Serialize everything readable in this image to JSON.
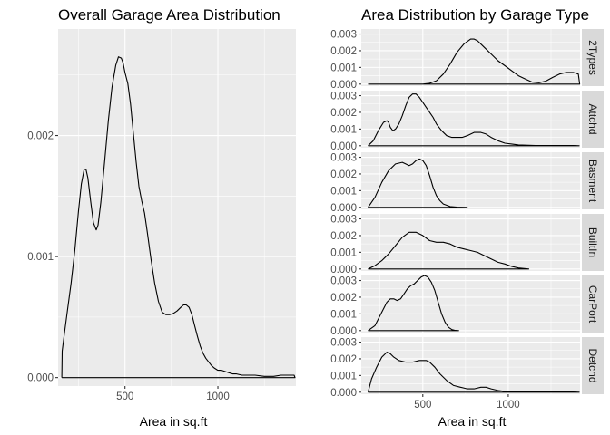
{
  "chart_data": [
    {
      "type": "area",
      "title": "Overall Garage Area Distribution",
      "xlabel": "Area in sq.ft",
      "ylabel": "",
      "xlim": [
        140,
        1420
      ],
      "ylim": [
        -7e-05,
        0.00288
      ],
      "xticks": [
        500,
        1000
      ],
      "xtick_labels": [
        "500",
        "1000"
      ],
      "yticks": [
        0,
        0.001,
        0.002
      ],
      "ytick_labels": [
        "0.000",
        "0.001",
        "0.002"
      ],
      "grid": true,
      "series": [
        {
          "x": [
            160,
            162,
            175,
            190,
            210,
            230,
            250,
            265,
            280,
            290,
            300,
            315,
            330,
            345,
            355,
            370,
            390,
            410,
            430,
            450,
            465,
            480,
            490,
            500,
            515,
            530,
            545,
            560,
            575,
            590,
            605,
            620,
            640,
            660,
            680,
            700,
            720,
            740,
            760,
            780,
            800,
            815,
            830,
            845,
            860,
            875,
            890,
            905,
            920,
            935,
            950,
            965,
            980,
            1000,
            1020,
            1040,
            1060,
            1080,
            1100,
            1130,
            1160,
            1200,
            1250,
            1300,
            1340,
            1380,
            1410,
            1415
          ],
          "y": [
            0.0,
            0.00022,
            0.00038,
            0.00055,
            0.00078,
            0.00105,
            0.00138,
            0.0016,
            0.00172,
            0.00172,
            0.00165,
            0.00146,
            0.00128,
            0.00122,
            0.00126,
            0.00145,
            0.00178,
            0.00212,
            0.0024,
            0.00258,
            0.00265,
            0.00264,
            0.0026,
            0.00252,
            0.00243,
            0.00226,
            0.00202,
            0.00178,
            0.00158,
            0.00146,
            0.00136,
            0.0012,
            0.00098,
            0.00078,
            0.00063,
            0.00054,
            0.00052,
            0.00052,
            0.00053,
            0.00055,
            0.00058,
            0.0006,
            0.0006,
            0.00058,
            0.00052,
            0.00043,
            0.00034,
            0.00026,
            0.0002,
            0.00016,
            0.00013,
            0.0001,
            8e-05,
            6e-05,
            6e-05,
            5e-05,
            4e-05,
            3e-05,
            3e-05,
            2e-05,
            2e-05,
            2e-05,
            1e-05,
            1e-05,
            2e-05,
            2e-05,
            2e-05,
            0.0
          ]
        }
      ]
    },
    {
      "type": "area",
      "title": "Area Distribution by Garage Type",
      "xlabel": "Area in sq.ft",
      "ylabel": "",
      "xlim": [
        140,
        1420
      ],
      "ylim": [
        -0.00012,
        0.0033
      ],
      "xticks": [
        500,
        1000
      ],
      "xtick_labels": [
        "500",
        "1000"
      ],
      "yticks": [
        0,
        0.001,
        0.002,
        0.003
      ],
      "ytick_labels": [
        "0.000",
        "0.001",
        "0.002",
        "0.003"
      ],
      "grid": true,
      "facets": [
        {
          "label": "2Types",
          "x": [
            180,
            500,
            540,
            580,
            620,
            660,
            700,
            740,
            780,
            800,
            820,
            860,
            900,
            940,
            980,
            1020,
            1060,
            1100,
            1140,
            1180,
            1220,
            1260,
            1300,
            1340,
            1380,
            1410,
            1418
          ],
          "y": [
            0.0,
            0.0,
            5e-05,
            0.0002,
            0.0006,
            0.0012,
            0.0019,
            0.0024,
            0.0027,
            0.0027,
            0.0026,
            0.0022,
            0.0018,
            0.0014,
            0.0011,
            0.0008,
            0.0005,
            0.0003,
            0.00012,
            8e-05,
            0.00018,
            0.0004,
            0.0006,
            0.0007,
            0.0007,
            0.0006,
            0.0
          ]
        },
        {
          "label": "Attchd",
          "x": [
            180,
            210,
            240,
            270,
            290,
            300,
            310,
            325,
            340,
            360,
            380,
            400,
            420,
            440,
            460,
            480,
            500,
            520,
            540,
            560,
            580,
            610,
            640,
            670,
            700,
            730,
            760,
            800,
            840,
            870,
            900,
            940,
            980,
            1020,
            1060,
            1100,
            1160,
            1220,
            1300,
            1380,
            1415
          ],
          "y": [
            0.0,
            0.0003,
            0.0009,
            0.0014,
            0.0015,
            0.0014,
            0.0011,
            0.0009,
            0.001,
            0.0013,
            0.0018,
            0.0024,
            0.0029,
            0.0031,
            0.0031,
            0.0029,
            0.0026,
            0.0023,
            0.002,
            0.0017,
            0.0013,
            0.0009,
            0.0006,
            0.0005,
            0.0005,
            0.0005,
            0.0006,
            0.0008,
            0.0008,
            0.0007,
            0.0005,
            0.0003,
            0.00015,
            0.0001,
            5e-05,
            3e-05,
            1e-05,
            1e-05,
            1e-05,
            1e-05,
            0.0
          ]
        },
        {
          "label": "Basment",
          "x": [
            180,
            220,
            260,
            300,
            340,
            380,
            400,
            420,
            440,
            460,
            480,
            500,
            520,
            540,
            560,
            580,
            600,
            620,
            660,
            700,
            760
          ],
          "y": [
            0.0,
            0.0006,
            0.0015,
            0.0022,
            0.0026,
            0.0027,
            0.0026,
            0.0025,
            0.0026,
            0.0028,
            0.0029,
            0.0028,
            0.0025,
            0.0019,
            0.0012,
            0.0007,
            0.0004,
            0.0002,
            5e-05,
            1e-05,
            0.0
          ]
        },
        {
          "label": "BuiltIn",
          "x": [
            180,
            220,
            260,
            300,
            340,
            380,
            420,
            460,
            500,
            540,
            580,
            620,
            660,
            700,
            740,
            780,
            820,
            860,
            900,
            940,
            980,
            1020,
            1060,
            1100,
            1120
          ],
          "y": [
            0.0,
            0.0002,
            0.0005,
            0.0009,
            0.0014,
            0.0019,
            0.0022,
            0.0022,
            0.002,
            0.0017,
            0.0016,
            0.0016,
            0.0015,
            0.0013,
            0.0012,
            0.0011,
            0.001,
            0.0008,
            0.0006,
            0.0004,
            0.0003,
            0.00015,
            6e-05,
            2e-05,
            0.0
          ]
        },
        {
          "label": "CarPort",
          "x": [
            180,
            220,
            260,
            290,
            310,
            330,
            350,
            370,
            390,
            410,
            430,
            450,
            470,
            490,
            510,
            530,
            550,
            570,
            590,
            610,
            630,
            650,
            670,
            690,
            710
          ],
          "y": [
            0.0,
            0.0003,
            0.0011,
            0.0017,
            0.0019,
            0.0019,
            0.0018,
            0.0019,
            0.0022,
            0.0025,
            0.0027,
            0.0028,
            0.003,
            0.0032,
            0.0033,
            0.0032,
            0.0029,
            0.0024,
            0.0017,
            0.001,
            0.0005,
            0.0002,
            6e-05,
            1e-05,
            0.0
          ]
        },
        {
          "label": "Detchd",
          "x": [
            180,
            200,
            230,
            260,
            290,
            310,
            330,
            360,
            400,
            440,
            480,
            520,
            540,
            570,
            600,
            640,
            680,
            720,
            760,
            800,
            840,
            870,
            900,
            940,
            980,
            1020,
            1080,
            1140,
            1200,
            1300,
            1380,
            1415
          ],
          "y": [
            0.0,
            0.0008,
            0.0015,
            0.0021,
            0.0024,
            0.0023,
            0.0021,
            0.0019,
            0.0018,
            0.0018,
            0.0019,
            0.0019,
            0.0018,
            0.0015,
            0.0011,
            0.0007,
            0.0004,
            0.0003,
            0.0002,
            0.0002,
            0.0003,
            0.0003,
            0.0002,
            0.0001,
            5e-05,
            2e-05,
            1e-05,
            1e-05,
            1e-05,
            1e-05,
            1e-05,
            0.0
          ]
        }
      ]
    }
  ]
}
